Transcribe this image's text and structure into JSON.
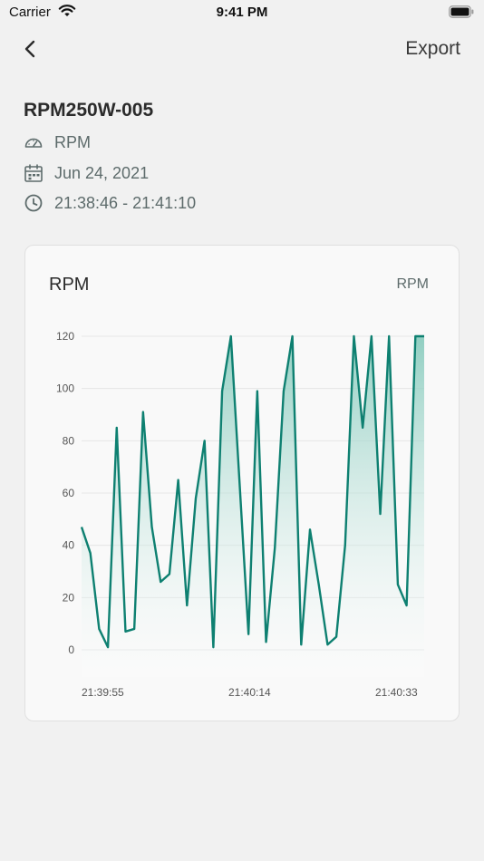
{
  "status_bar": {
    "carrier": "Carrier",
    "time": "9:41 PM"
  },
  "nav": {
    "export_label": "Export"
  },
  "device": {
    "id": "RPM250W-005",
    "metric": "RPM",
    "date": "Jun 24, 2021",
    "time_range": "21:38:46 - 21:41:10"
  },
  "card": {
    "title": "RPM",
    "unit": "RPM"
  },
  "colors": {
    "line": "#0e8071",
    "fill_top": "#7ec7b8",
    "fill_bottom": "#ffffff",
    "grid": "#e6e6e6"
  },
  "chart_data": {
    "type": "area",
    "title": "RPM",
    "ylabel": "RPM",
    "xlabel": "",
    "ylim": [
      0,
      120
    ],
    "yticks": [
      0,
      20,
      40,
      60,
      80,
      100,
      120
    ],
    "xtick_labels": [
      "21:39:55",
      "21:40:14",
      "21:40:33"
    ],
    "grid": true,
    "series": [
      {
        "values": [
          47,
          37,
          8,
          1,
          85,
          7,
          8,
          91,
          47,
          26,
          29,
          65,
          17,
          58,
          80,
          1,
          99,
          120,
          63,
          6,
          99,
          3,
          39,
          99,
          120,
          2,
          46,
          25,
          2,
          5,
          40,
          120,
          85,
          120,
          52,
          120,
          25,
          17,
          120,
          120
        ]
      }
    ]
  }
}
